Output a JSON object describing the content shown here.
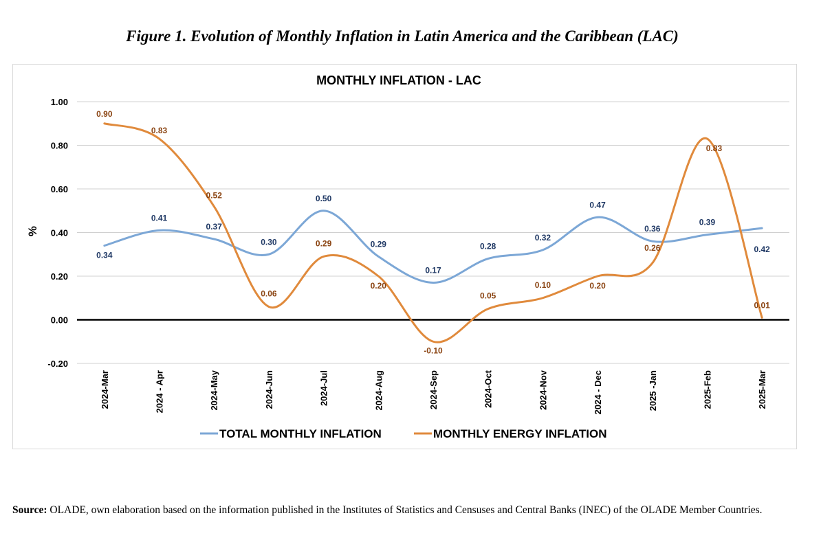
{
  "figure_title": "Figure 1. Evolution of Monthly Inflation in Latin America and the Caribbean (LAC)",
  "source": {
    "label": "Source:",
    "text": "OLADE, own elaboration based on the information published in the Institutes of Statistics and Censuses and Central Banks (INEC) of the OLADE Member Countries."
  },
  "chart_data": {
    "type": "line",
    "title": "MONTHLY INFLATION - LAC",
    "ylabel": "%",
    "xlabel": "",
    "ylim": [
      -0.2,
      1.0
    ],
    "yticks": [
      "1.00",
      "0.80",
      "0.60",
      "0.40",
      "0.20",
      "0.00",
      "-0.20"
    ],
    "grid": true,
    "legend_position": "bottom",
    "smooth": true,
    "categories": [
      "2024-Mar",
      "2024 - Apr",
      "2024-May",
      "2024-Jun",
      "2024-Jul",
      "2024-Aug",
      "2024-Sep",
      "2024-Oct",
      "2024-Nov",
      "2024 - Dec",
      "2025 -Jan",
      "2025-Feb",
      "2025-Mar"
    ],
    "series": [
      {
        "name": "TOTAL MONTHLY INFLATION",
        "color": "#7ca7d6",
        "label_color": "#1f3864",
        "values": [
          0.34,
          0.41,
          0.37,
          0.3,
          0.5,
          0.29,
          0.17,
          0.28,
          0.32,
          0.47,
          0.36,
          0.39,
          0.42
        ],
        "labels": [
          "0.34",
          "0.41",
          "0.37",
          "0.30",
          "0.50",
          "0.29",
          "0.17",
          "0.28",
          "0.32",
          "0.47",
          "0.36",
          "0.39",
          "0.42"
        ]
      },
      {
        "name": "MONTHLY ENERGY INFLATION",
        "color": "#e08a3c",
        "label_color": "#8b4513",
        "values": [
          0.9,
          0.83,
          0.52,
          0.06,
          0.29,
          0.2,
          -0.1,
          0.05,
          0.1,
          0.2,
          0.26,
          0.83,
          0.01
        ],
        "labels": [
          "0.90",
          "0.83",
          "0.52",
          "0.06",
          "0.29",
          "0.20",
          "-0.10",
          "0.05",
          "0.10",
          "0.20",
          "0.26",
          "0.83",
          "0.01"
        ]
      }
    ]
  }
}
